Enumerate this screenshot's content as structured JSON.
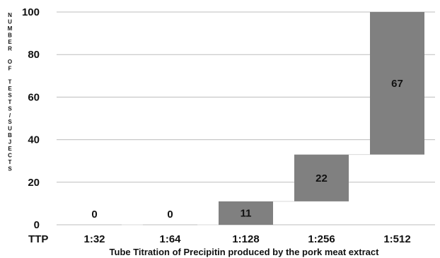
{
  "chart_data": {
    "type": "bar",
    "subtype": "waterfall",
    "categories": [
      "1:32",
      "1:64",
      "1:128",
      "1:256",
      "1:512"
    ],
    "values": [
      0,
      0,
      11,
      22,
      67
    ],
    "data_labels": [
      "0",
      "0",
      "11",
      "22",
      "67"
    ],
    "xlabel": "Tube Titration of Precipitin produced by the pork meat extract",
    "ylabel": "NUMBER OF TESTS/SUBJECTS",
    "category_axis_prefix": "TTP",
    "ylim": [
      0,
      100
    ],
    "yticks": [
      0,
      20,
      40,
      60,
      80,
      100
    ],
    "grid": true,
    "legend": "none",
    "colors": {
      "bar": "#808080",
      "grid": "#bdbdbd",
      "connector": "#d9d9d9"
    }
  }
}
